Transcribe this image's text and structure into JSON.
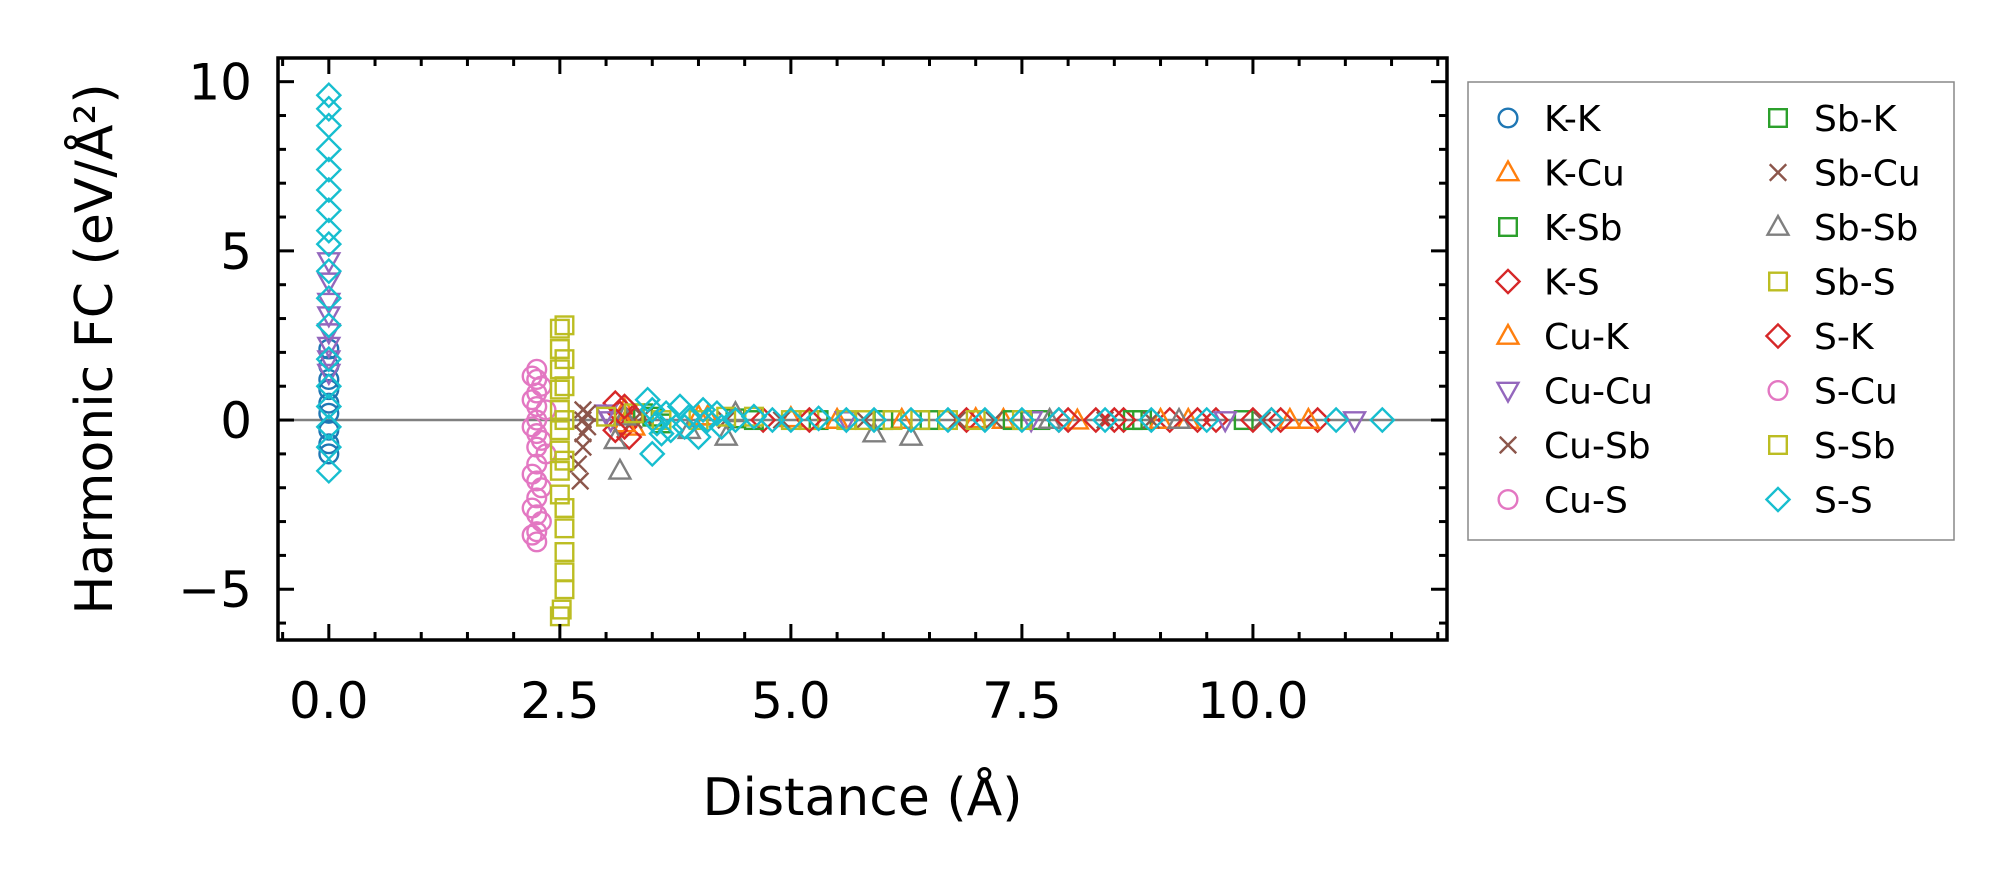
{
  "chart_data": {
    "type": "scatter",
    "title": "",
    "xlabel": "Distance (Å)",
    "ylabel": "Harmonic FC (eV/Å²)",
    "xlim": [
      -0.55,
      12.1
    ],
    "ylim": [
      -6.5,
      10.7
    ],
    "xticks": [
      0.0,
      2.5,
      5.0,
      7.5,
      10.0
    ],
    "xtick_labels": [
      "0.0",
      "2.5",
      "5.0",
      "7.5",
      "10.0"
    ],
    "yticks": [
      -5,
      0,
      5,
      10
    ],
    "ytick_labels": [
      "−5",
      "0",
      "5",
      "10"
    ],
    "zero_line": true,
    "legend_position": "outside-right",
    "series": [
      {
        "name": "K-K",
        "marker": "circle",
        "color": "#1f77b4",
        "points": [
          [
            0,
            2.1
          ],
          [
            0,
            1.6
          ],
          [
            0,
            1.2
          ],
          [
            0,
            0.9
          ],
          [
            0,
            0.5
          ],
          [
            0,
            0.2
          ],
          [
            0,
            -0.3
          ],
          [
            0,
            -0.7
          ],
          [
            0,
            -1.0
          ]
        ]
      },
      {
        "name": "K-Cu",
        "marker": "triangle-up",
        "color": "#ff7f0e",
        "points": [
          [
            3.2,
            0.3
          ],
          [
            3.3,
            -0.2
          ],
          [
            4.1,
            0.1
          ],
          [
            5.0,
            0.05
          ],
          [
            6.2,
            0.0
          ],
          [
            7.0,
            0.02
          ],
          [
            8.1,
            -0.02
          ],
          [
            9.3,
            0.0
          ],
          [
            10.4,
            0.0
          ]
        ]
      },
      {
        "name": "K-Sb",
        "marker": "square",
        "color": "#2ca02c",
        "points": [
          [
            3.4,
            0.2
          ],
          [
            3.6,
            -0.1
          ],
          [
            4.4,
            0.05
          ],
          [
            5.3,
            0.0
          ],
          [
            6.5,
            0.0
          ],
          [
            7.7,
            0.0
          ],
          [
            8.8,
            0.0
          ],
          [
            9.9,
            0.0
          ]
        ]
      },
      {
        "name": "K-S",
        "marker": "diamond",
        "color": "#d62728",
        "points": [
          [
            3.1,
            0.5
          ],
          [
            3.15,
            0.2
          ],
          [
            3.2,
            -0.2
          ],
          [
            3.25,
            -0.5
          ],
          [
            3.3,
            0.1
          ],
          [
            4.7,
            0.0
          ],
          [
            6.9,
            0.0
          ],
          [
            7.9,
            0.0
          ],
          [
            8.3,
            0.0
          ],
          [
            8.6,
            0.0
          ],
          [
            9.1,
            0.0
          ],
          [
            9.6,
            0.0
          ],
          [
            10.0,
            0.0
          ],
          [
            10.3,
            0.0
          ],
          [
            10.7,
            0.0
          ]
        ]
      },
      {
        "name": "Cu-K",
        "marker": "triangle-up",
        "color": "#ff7f0e",
        "points": [
          [
            3.2,
            -0.1
          ],
          [
            4.0,
            0.1
          ],
          [
            5.5,
            0.0
          ],
          [
            7.3,
            0.0
          ],
          [
            9.0,
            0.0
          ],
          [
            10.6,
            0.0
          ]
        ]
      },
      {
        "name": "Cu-Cu",
        "marker": "triangle-down",
        "color": "#9467bd",
        "points": [
          [
            0,
            4.7
          ],
          [
            0,
            4.1
          ],
          [
            0,
            3.5
          ],
          [
            0,
            3.1
          ],
          [
            0,
            2.6
          ],
          [
            0,
            2.2
          ],
          [
            0,
            1.8
          ],
          [
            0,
            1.4
          ],
          [
            3.0,
            0.2
          ],
          [
            3.05,
            0.0
          ],
          [
            5.6,
            0.0
          ],
          [
            7.6,
            0.0
          ],
          [
            9.7,
            0.0
          ],
          [
            11.1,
            0.0
          ]
        ]
      },
      {
        "name": "Cu-Sb",
        "marker": "x",
        "color": "#8c564b",
        "points": [
          [
            2.75,
            0.3
          ],
          [
            2.75,
            0.0
          ],
          [
            2.75,
            -0.4
          ],
          [
            2.75,
            -0.8
          ],
          [
            2.72,
            -1.8
          ],
          [
            2.7,
            -1.3
          ],
          [
            3.4,
            0.1
          ],
          [
            4.3,
            0.0
          ],
          [
            5.8,
            0.0
          ],
          [
            7.2,
            0.0
          ],
          [
            8.9,
            0.0
          ],
          [
            10.1,
            0.0
          ]
        ]
      },
      {
        "name": "Cu-S",
        "marker": "circle",
        "color": "#e377c2",
        "points": [
          [
            2.25,
            1.5
          ],
          [
            2.25,
            1.2
          ],
          [
            2.25,
            0.8
          ],
          [
            2.25,
            0.4
          ],
          [
            2.25,
            0.0
          ],
          [
            2.25,
            -0.4
          ],
          [
            2.25,
            -0.8
          ],
          [
            2.25,
            -1.3
          ],
          [
            2.25,
            -1.8
          ],
          [
            2.25,
            -2.3
          ],
          [
            2.25,
            -2.8
          ],
          [
            2.25,
            -3.3
          ],
          [
            2.25,
            -3.6
          ],
          [
            2.3,
            1.0
          ],
          [
            2.3,
            -0.6
          ],
          [
            2.3,
            -2.0
          ],
          [
            2.3,
            -3.0
          ],
          [
            2.35,
            0.3
          ],
          [
            2.35,
            -1.0
          ]
        ]
      },
      {
        "name": "Sb-K",
        "marker": "square",
        "color": "#2ca02c",
        "points": [
          [
            3.5,
            0.1
          ],
          [
            4.6,
            0.0
          ],
          [
            6.0,
            0.0
          ],
          [
            7.4,
            0.0
          ],
          [
            8.7,
            0.0
          ]
        ]
      },
      {
        "name": "Sb-Cu",
        "marker": "x",
        "color": "#8c564b",
        "points": [
          [
            2.8,
            0.2
          ],
          [
            2.8,
            -0.2
          ],
          [
            3.3,
            0.0
          ],
          [
            4.9,
            0.0
          ],
          [
            6.8,
            0.0
          ],
          [
            8.4,
            0.0
          ]
        ]
      },
      {
        "name": "Sb-Sb",
        "marker": "triangle-up",
        "color": "#7f7f7f",
        "points": [
          [
            3.15,
            -1.5
          ],
          [
            3.1,
            -0.6
          ],
          [
            3.2,
            0.1
          ],
          [
            3.9,
            -0.3
          ],
          [
            4.3,
            -0.5
          ],
          [
            4.4,
            0.2
          ],
          [
            5.9,
            -0.4
          ],
          [
            6.3,
            -0.5
          ],
          [
            7.8,
            0.0
          ],
          [
            9.2,
            0.0
          ]
        ]
      },
      {
        "name": "Sb-S",
        "marker": "square",
        "color": "#bcbd22",
        "points": [
          [
            2.5,
            2.7
          ],
          [
            2.5,
            2.1
          ],
          [
            2.5,
            1.5
          ],
          [
            2.5,
            0.9
          ],
          [
            2.5,
            0.3
          ],
          [
            2.5,
            -0.3
          ],
          [
            2.5,
            -0.9
          ],
          [
            2.5,
            -1.5
          ],
          [
            2.5,
            -2.2
          ],
          [
            3.3,
            0.2
          ],
          [
            4.0,
            0.0
          ],
          [
            4.6,
            0.1
          ],
          [
            5.2,
            0.0
          ],
          [
            5.8,
            0.0
          ],
          [
            6.4,
            0.0
          ],
          [
            7.0,
            0.0
          ],
          [
            7.5,
            0.0
          ]
        ]
      },
      {
        "name": "S-K",
        "marker": "diamond",
        "color": "#d62728",
        "points": [
          [
            3.1,
            -0.3
          ],
          [
            3.2,
            0.4
          ],
          [
            5.2,
            0.0
          ],
          [
            8.0,
            0.0
          ],
          [
            8.5,
            0.0
          ],
          [
            9.4,
            0.0
          ],
          [
            10.2,
            0.0
          ]
        ]
      },
      {
        "name": "S-Cu",
        "marker": "circle",
        "color": "#e377c2",
        "points": [
          [
            2.2,
            1.3
          ],
          [
            2.2,
            0.6
          ],
          [
            2.2,
            -0.2
          ],
          [
            2.2,
            -1.6
          ],
          [
            2.2,
            -2.6
          ],
          [
            2.2,
            -3.4
          ]
        ]
      },
      {
        "name": "S-Sb",
        "marker": "square",
        "color": "#bcbd22",
        "points": [
          [
            2.55,
            2.8
          ],
          [
            2.55,
            1.8
          ],
          [
            2.55,
            1.0
          ],
          [
            2.55,
            0.0
          ],
          [
            2.55,
            -1.2
          ],
          [
            2.55,
            -2.6
          ],
          [
            2.55,
            -3.2
          ],
          [
            2.55,
            -3.9
          ],
          [
            2.55,
            -4.5
          ],
          [
            2.55,
            -5.0
          ],
          [
            2.52,
            -5.6
          ],
          [
            2.5,
            -5.8
          ],
          [
            3.0,
            0.1
          ],
          [
            3.6,
            0.0
          ],
          [
            4.3,
            0.1
          ],
          [
            5.0,
            0.0
          ],
          [
            5.6,
            0.0
          ],
          [
            6.1,
            0.0
          ],
          [
            6.7,
            0.0
          ]
        ]
      },
      {
        "name": "S-S",
        "marker": "diamond",
        "color": "#17becf",
        "points": [
          [
            0,
            9.6
          ],
          [
            0,
            9.2
          ],
          [
            0,
            8.7
          ],
          [
            0,
            8.0
          ],
          [
            0,
            7.4
          ],
          [
            0,
            6.8
          ],
          [
            0,
            6.2
          ],
          [
            0,
            5.6
          ],
          [
            0,
            5.2
          ],
          [
            0,
            4.4
          ],
          [
            0,
            3.6
          ],
          [
            0,
            2.8
          ],
          [
            0,
            1.8
          ],
          [
            0,
            1.0
          ],
          [
            0,
            0.4
          ],
          [
            0,
            -0.2
          ],
          [
            0,
            -0.8
          ],
          [
            0,
            -1.5
          ],
          [
            3.45,
            0.6
          ],
          [
            3.5,
            0.3
          ],
          [
            3.55,
            -0.1
          ],
          [
            3.6,
            -0.4
          ],
          [
            3.5,
            -1.0
          ],
          [
            3.65,
            0.2
          ],
          [
            3.7,
            -0.3
          ],
          [
            3.8,
            0.4
          ],
          [
            3.85,
            -0.2
          ],
          [
            3.9,
            0.1
          ],
          [
            4.0,
            -0.5
          ],
          [
            4.05,
            0.3
          ],
          [
            4.1,
            0.0
          ],
          [
            4.2,
            0.2
          ],
          [
            4.25,
            -0.2
          ],
          [
            4.4,
            0.0
          ],
          [
            4.6,
            0.1
          ],
          [
            4.8,
            0.0
          ],
          [
            5.0,
            0.0
          ],
          [
            5.3,
            0.05
          ],
          [
            5.6,
            0.0
          ],
          [
            5.9,
            0.0
          ],
          [
            6.3,
            0.0
          ],
          [
            6.7,
            0.0
          ],
          [
            7.1,
            0.0
          ],
          [
            7.5,
            0.0
          ],
          [
            7.9,
            0.0
          ],
          [
            8.4,
            0.0
          ],
          [
            8.9,
            0.0
          ],
          [
            9.5,
            0.0
          ],
          [
            10.2,
            0.0
          ],
          [
            10.9,
            0.0
          ],
          [
            11.4,
            0.0
          ]
        ]
      }
    ]
  }
}
